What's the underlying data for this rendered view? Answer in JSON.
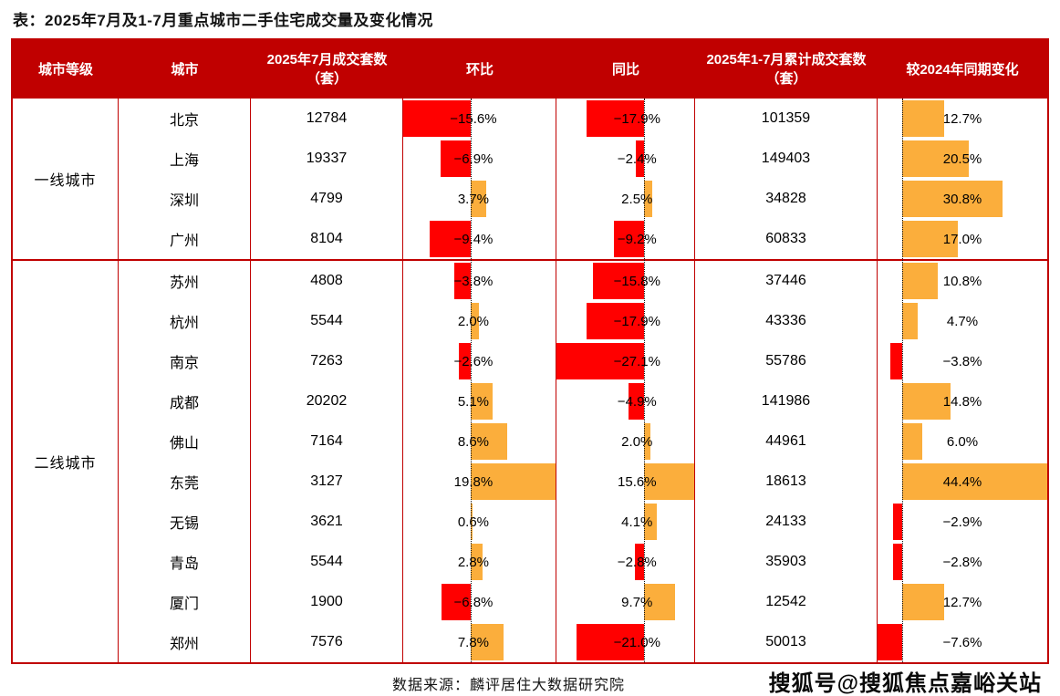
{
  "title": "表：2025年7月及1-7月重点城市二手住宅成交量及变化情况",
  "source_note": "数据来源：麟评居住大数据研究院",
  "watermark": "搜狐号@搜狐焦点嘉峪关站",
  "colors": {
    "header_bg": "#C00000",
    "table_border": "#C00000",
    "header_text": "#FFFFFF",
    "negative_bar": "#FF0000",
    "positive_bar": "#FBAE3C"
  },
  "table": {
    "headers": [
      "城市等级",
      "城市",
      "2025年7月成交套数（套）",
      "环比",
      "同比",
      "2025年1-7月累计成交套数（套）",
      "较2024年同期变化"
    ],
    "tiers": [
      {
        "label": "一线城市",
        "cities": [
          {
            "name": "北京",
            "jul_volume": "12784",
            "mom": {
              "v": -15.6,
              "label": "−15.6%"
            },
            "yoy": {
              "v": -17.9,
              "label": "−17.9%"
            },
            "cum_volume": "101359",
            "chg": {
              "v": 12.7,
              "label": "12.7%"
            }
          },
          {
            "name": "上海",
            "jul_volume": "19337",
            "mom": {
              "v": -6.9,
              "label": "−6.9%"
            },
            "yoy": {
              "v": -2.4,
              "label": "−2.4%"
            },
            "cum_volume": "149403",
            "chg": {
              "v": 20.5,
              "label": "20.5%"
            }
          },
          {
            "name": "深圳",
            "jul_volume": "4799",
            "mom": {
              "v": 3.7,
              "label": "3.7%"
            },
            "yoy": {
              "v": 2.5,
              "label": "2.5%"
            },
            "cum_volume": "34828",
            "chg": {
              "v": 30.8,
              "label": "30.8%"
            }
          },
          {
            "name": "广州",
            "jul_volume": "8104",
            "mom": {
              "v": -9.4,
              "label": "−9.4%"
            },
            "yoy": {
              "v": -9.2,
              "label": "−9.2%"
            },
            "cum_volume": "60833",
            "chg": {
              "v": 17.0,
              "label": "17.0%"
            }
          }
        ]
      },
      {
        "label": "二线城市",
        "cities": [
          {
            "name": "苏州",
            "jul_volume": "4808",
            "mom": {
              "v": -3.8,
              "label": "−3.8%"
            },
            "yoy": {
              "v": -15.8,
              "label": "−15.8%"
            },
            "cum_volume": "37446",
            "chg": {
              "v": 10.8,
              "label": "10.8%"
            }
          },
          {
            "name": "杭州",
            "jul_volume": "5544",
            "mom": {
              "v": 2.0,
              "label": "2.0%"
            },
            "yoy": {
              "v": -17.9,
              "label": "−17.9%"
            },
            "cum_volume": "43336",
            "chg": {
              "v": 4.7,
              "label": "4.7%"
            }
          },
          {
            "name": "南京",
            "jul_volume": "7263",
            "mom": {
              "v": -2.6,
              "label": "−2.6%"
            },
            "yoy": {
              "v": -27.1,
              "label": "−27.1%"
            },
            "cum_volume": "55786",
            "chg": {
              "v": -3.8,
              "label": "−3.8%"
            }
          },
          {
            "name": "成都",
            "jul_volume": "20202",
            "mom": {
              "v": 5.1,
              "label": "5.1%"
            },
            "yoy": {
              "v": -4.9,
              "label": "−4.9%"
            },
            "cum_volume": "141986",
            "chg": {
              "v": 14.8,
              "label": "14.8%"
            }
          },
          {
            "name": "佛山",
            "jul_volume": "7164",
            "mom": {
              "v": 8.6,
              "label": "8.6%"
            },
            "yoy": {
              "v": 2.0,
              "label": "2.0%"
            },
            "cum_volume": "44961",
            "chg": {
              "v": 6.0,
              "label": "6.0%"
            }
          },
          {
            "name": "东莞",
            "jul_volume": "3127",
            "mom": {
              "v": 19.8,
              "label": "19.8%"
            },
            "yoy": {
              "v": 15.6,
              "label": "15.6%"
            },
            "cum_volume": "18613",
            "chg": {
              "v": 44.4,
              "label": "44.4%"
            }
          },
          {
            "name": "无锡",
            "jul_volume": "3621",
            "mom": {
              "v": 0.6,
              "label": "0.6%"
            },
            "yoy": {
              "v": 4.1,
              "label": "4.1%"
            },
            "cum_volume": "24133",
            "chg": {
              "v": -2.9,
              "label": "−2.9%"
            }
          },
          {
            "name": "青岛",
            "jul_volume": "5544",
            "mom": {
              "v": 2.8,
              "label": "2.8%"
            },
            "yoy": {
              "v": -2.8,
              "label": "−2.8%"
            },
            "cum_volume": "35903",
            "chg": {
              "v": -2.8,
              "label": "−2.8%"
            }
          },
          {
            "name": "厦门",
            "jul_volume": "1900",
            "mom": {
              "v": -6.8,
              "label": "−6.8%"
            },
            "yoy": {
              "v": 9.7,
              "label": "9.7%"
            },
            "cum_volume": "12542",
            "chg": {
              "v": 12.7,
              "label": "12.7%"
            }
          },
          {
            "name": "郑州",
            "jul_volume": "7576",
            "mom": {
              "v": 7.8,
              "label": "7.8%"
            },
            "yoy": {
              "v": -21.0,
              "label": "−21.0%"
            },
            "cum_volume": "50013",
            "chg": {
              "v": -7.6,
              "label": "−7.6%"
            }
          }
        ]
      }
    ]
  },
  "chart_data": {
    "type": "table",
    "title": "2025年7月及1-7月重点城市二手住宅成交量及变化情况",
    "columns": [
      "城市等级",
      "城市",
      "2025年7月成交套数（套）",
      "环比",
      "同比",
      "2025年1-7月累计成交套数（套）",
      "较2024年同期变化"
    ],
    "rows": [
      [
        "一线城市",
        "北京",
        12784,
        -15.6,
        -17.9,
        101359,
        12.7
      ],
      [
        "一线城市",
        "上海",
        19337,
        -6.9,
        -2.4,
        149403,
        20.5
      ],
      [
        "一线城市",
        "深圳",
        4799,
        3.7,
        2.5,
        34828,
        30.8
      ],
      [
        "一线城市",
        "广州",
        8104,
        -9.4,
        -9.2,
        60833,
        17.0
      ],
      [
        "二线城市",
        "苏州",
        4808,
        -3.8,
        -15.8,
        37446,
        10.8
      ],
      [
        "二线城市",
        "杭州",
        5544,
        2.0,
        -17.9,
        43336,
        4.7
      ],
      [
        "二线城市",
        "南京",
        7263,
        -2.6,
        -27.1,
        55786,
        -3.8
      ],
      [
        "二线城市",
        "成都",
        20202,
        5.1,
        -4.9,
        141986,
        14.8
      ],
      [
        "二线城市",
        "佛山",
        7164,
        8.6,
        2.0,
        44961,
        6.0
      ],
      [
        "二线城市",
        "东莞",
        3127,
        19.8,
        15.6,
        18613,
        44.4
      ],
      [
        "二线城市",
        "无锡",
        3621,
        0.6,
        4.1,
        24133,
        -2.9
      ],
      [
        "二线城市",
        "青岛",
        5544,
        2.8,
        -2.8,
        35903,
        -2.8
      ],
      [
        "二线城市",
        "厦门",
        1900,
        -6.8,
        9.7,
        12542,
        12.7
      ],
      [
        "二线城市",
        "郑州",
        7576,
        7.8,
        -21.0,
        50013,
        -7.6
      ]
    ],
    "percent_unit": "%",
    "bar_columns": {
      "环比": {
        "min": -15.6,
        "max": 19.8
      },
      "同比": {
        "min": -27.1,
        "max": 15.6
      },
      "较2024年同期变化": {
        "min": -7.6,
        "max": 44.4
      }
    },
    "bar_color_negative": "#FF0000",
    "bar_color_positive": "#FBAE3C",
    "legend": "红色条=负值，橙色条=正值，虚线=零轴"
  }
}
